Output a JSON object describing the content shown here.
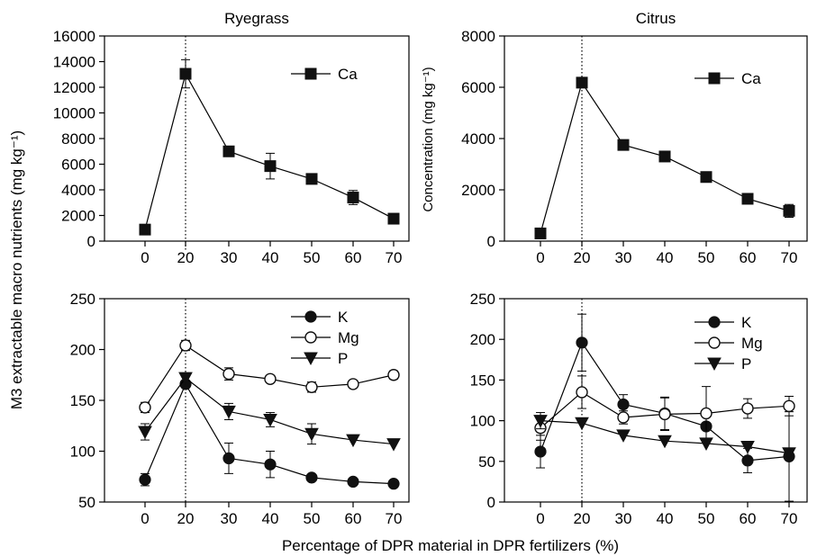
{
  "figure": {
    "xlabel": "Percentage of DPR material in DPR fertilizers (%)",
    "ylabel_left": "M3 extractable macro nutrients (mg kg⁻¹)",
    "ylabel_right": "Concentration (mg kg⁻¹)"
  },
  "chart_data": [
    {
      "id": "ryegrass-ca",
      "type": "line",
      "title": "Ryegrass",
      "x_tick_labels": [
        "0",
        "20",
        "30",
        "40",
        "50",
        "60",
        "70"
      ],
      "ylim": [
        0,
        16000
      ],
      "yticks": [
        0,
        2000,
        4000,
        6000,
        8000,
        10000,
        12000,
        14000,
        16000
      ],
      "reference_line": "20",
      "legend_position": "top-right",
      "series": [
        {
          "name": "Ca",
          "marker": "square",
          "values": [
            900,
            13050,
            7000,
            5850,
            4850,
            3400,
            1750
          ],
          "errors": [
            0,
            1100,
            0,
            1000,
            0,
            550,
            0
          ]
        }
      ]
    },
    {
      "id": "citrus-ca",
      "type": "line",
      "title": "Citrus",
      "x_tick_labels": [
        "0",
        "20",
        "30",
        "40",
        "50",
        "60",
        "70"
      ],
      "ylim": [
        0,
        8000
      ],
      "yticks": [
        0,
        2000,
        4000,
        6000,
        8000
      ],
      "reference_line": "20",
      "legend_position": "top-right",
      "series": [
        {
          "name": "Ca",
          "marker": "square",
          "values": [
            300,
            6180,
            3750,
            3300,
            2500,
            1650,
            1180
          ],
          "errors": [
            0,
            0,
            100,
            100,
            200,
            150,
            250
          ]
        }
      ]
    },
    {
      "id": "ryegrass-kmgp",
      "type": "line",
      "title": "",
      "x_tick_labels": [
        "0",
        "20",
        "30",
        "40",
        "50",
        "60",
        "70"
      ],
      "ylim": [
        50,
        250
      ],
      "yticks": [
        50,
        100,
        150,
        200,
        250
      ],
      "reference_line": "20",
      "legend_position": "top-right",
      "series": [
        {
          "name": "K",
          "marker": "circle-filled",
          "values": [
            72,
            166,
            93,
            87,
            74,
            70,
            68
          ],
          "errors": [
            6,
            0,
            15,
            13,
            0,
            0,
            0
          ]
        },
        {
          "name": "Mg",
          "marker": "circle-open",
          "values": [
            143,
            204,
            176,
            171,
            163,
            166,
            175
          ],
          "errors": [
            5,
            5,
            6,
            0,
            5,
            0,
            4
          ]
        },
        {
          "name": "P",
          "marker": "triangle-down",
          "values": [
            119,
            172,
            139,
            131,
            117,
            111,
            107
          ],
          "errors": [
            8,
            0,
            8,
            7,
            10,
            0,
            0
          ]
        }
      ]
    },
    {
      "id": "citrus-kmgp",
      "type": "line",
      "title": "",
      "x_tick_labels": [
        "0",
        "20",
        "30",
        "40",
        "50",
        "60",
        "70"
      ],
      "ylim": [
        0,
        250
      ],
      "yticks": [
        0,
        50,
        100,
        150,
        200,
        250
      ],
      "reference_line": "20",
      "legend_position": "top-right",
      "series": [
        {
          "name": "K",
          "marker": "circle-filled",
          "values": [
            62,
            196,
            120,
            109,
            93,
            51,
            56
          ],
          "errors": [
            20,
            35,
            12,
            20,
            0,
            15,
            55
          ]
        },
        {
          "name": "Mg",
          "marker": "circle-open",
          "values": [
            91,
            135,
            104,
            108,
            109,
            115,
            118
          ],
          "errors": [
            15,
            20,
            8,
            20,
            33,
            12,
            12
          ]
        },
        {
          "name": "P",
          "marker": "triangle-down",
          "values": [
            100,
            97,
            82,
            75,
            72,
            68,
            60
          ],
          "errors": [
            10,
            0,
            0,
            0,
            0,
            0,
            0
          ]
        }
      ]
    }
  ]
}
